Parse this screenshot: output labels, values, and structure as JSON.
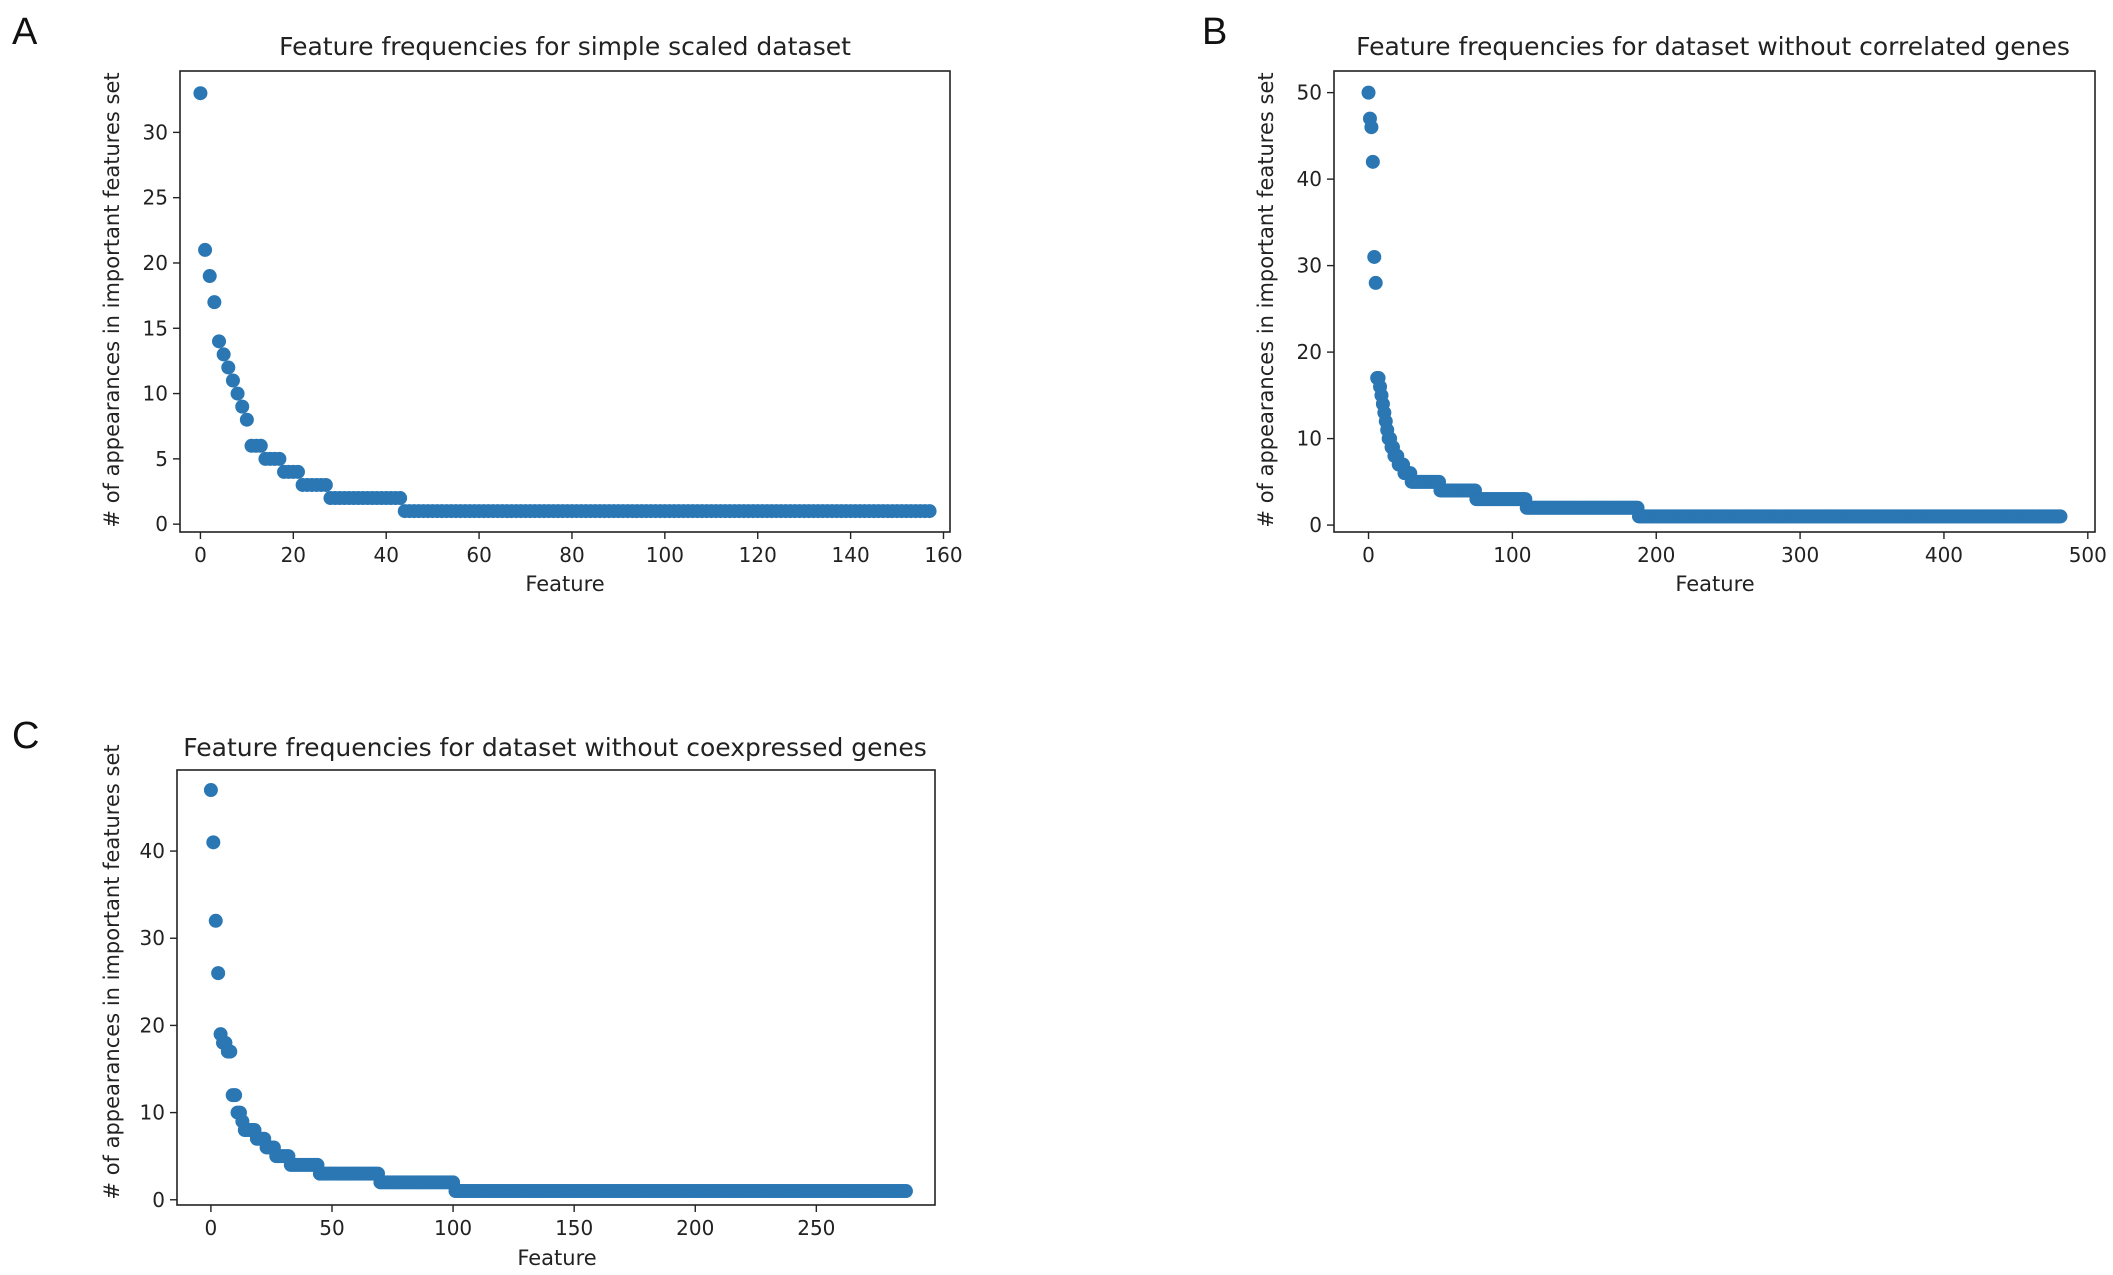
{
  "chart_data": [
    {
      "type": "scatter",
      "panel_label": "A",
      "title": "Feature frequencies for simple scaled dataset",
      "xlabel": "Feature",
      "ylabel": "# of appearances in important features set",
      "xlim": [
        -4.4,
        161.4
      ],
      "ylim": [
        -0.6,
        34.7
      ],
      "xticks": [
        0,
        20,
        40,
        60,
        80,
        100,
        120,
        140,
        160
      ],
      "yticks": [
        0,
        5,
        10,
        15,
        20,
        25,
        30
      ],
      "color": "#2a77b4",
      "y": [
        33,
        21,
        19,
        17,
        14,
        13,
        12,
        11,
        10,
        9,
        8,
        6,
        6,
        6,
        5,
        5,
        5,
        5,
        4,
        4,
        4,
        4,
        3,
        3,
        3,
        3,
        3,
        3,
        2,
        2,
        2,
        2,
        2,
        2,
        2,
        2,
        2,
        2,
        2,
        2,
        2,
        2,
        2,
        2
      ],
      "tail": {
        "from": 44,
        "to": 157,
        "value": 1
      }
    },
    {
      "type": "scatter",
      "panel_label": "B",
      "title": "Feature frequencies for dataset without correlated genes",
      "xlabel": "Feature",
      "ylabel": "# of appearances in important features set",
      "xlim": [
        -24,
        505
      ],
      "ylim": [
        -0.8,
        52.5
      ],
      "xticks": [
        0,
        100,
        200,
        300,
        400,
        500
      ],
      "yticks": [
        0,
        10,
        20,
        30,
        40,
        50
      ],
      "color": "#2a77b4",
      "y": [
        50,
        47,
        46,
        42,
        31,
        28,
        17,
        17,
        16,
        15,
        14,
        13,
        12,
        11,
        10,
        10,
        9,
        9,
        8,
        8,
        8,
        7,
        7,
        7,
        7,
        6,
        6,
        6,
        6,
        6,
        5,
        5,
        5,
        5,
        5,
        5,
        5,
        5,
        5,
        5,
        5,
        5,
        5,
        5,
        5,
        5,
        5,
        5,
        5,
        5
      ],
      "steps": [
        {
          "from": 50,
          "to": 74,
          "value": 4
        },
        {
          "from": 75,
          "to": 109,
          "value": 3
        },
        {
          "from": 110,
          "to": 187,
          "value": 2
        },
        {
          "from": 188,
          "to": 481,
          "value": 1
        }
      ]
    },
    {
      "type": "scatter",
      "panel_label": "C",
      "title": "Feature frequencies for dataset without coexpressed genes",
      "xlabel": "Feature",
      "ylabel": "# of appearances in important features set",
      "xlim": [
        -14,
        299
      ],
      "ylim": [
        -0.6,
        49.3
      ],
      "xticks": [
        0,
        50,
        100,
        150,
        200,
        250
      ],
      "yticks": [
        0,
        10,
        20,
        30,
        40
      ],
      "color": "#2a77b4",
      "y": [
        47,
        41,
        32,
        26,
        19,
        18,
        18,
        17,
        17,
        12,
        12,
        10,
        10,
        9,
        8,
        8,
        8,
        8,
        8,
        7,
        7,
        7,
        7,
        6,
        6,
        6,
        6,
        5,
        5,
        5,
        5,
        5,
        5,
        4,
        4,
        4,
        4,
        4,
        4,
        4,
        4,
        4,
        4,
        4,
        4
      ],
      "steps": [
        {
          "from": 45,
          "to": 69,
          "value": 3
        },
        {
          "from": 70,
          "to": 100,
          "value": 2
        },
        {
          "from": 101,
          "to": 287,
          "value": 1
        }
      ]
    }
  ]
}
